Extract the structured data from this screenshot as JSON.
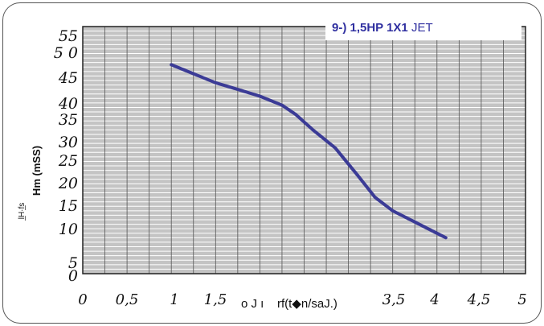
{
  "chart_data": {
    "type": "line",
    "title_bold": "9-) 1,5HP 1X1",
    "title_rest": " JET",
    "ylabel": "Hm (mSS)",
    "ylabel_extra": "l̲H·f̲s",
    "xlabel": "o J ı    rf(t◆n/saJ.)",
    "xlim": [
      0,
      5
    ],
    "ylim": [
      0,
      55
    ],
    "y_tick_labels": [
      "55",
      "5 0",
      "45",
      "40",
      "35",
      "30",
      "25",
      "20",
      "15",
      "10",
      "5",
      "0"
    ],
    "x_tick_labels": [
      "0",
      "0,5",
      "1",
      "1,5",
      "3,5",
      "4",
      "4,5",
      "5"
    ],
    "series": [
      {
        "x": [
          1.0,
          1.25,
          1.5,
          1.75,
          2.0,
          2.25,
          2.4,
          2.6,
          2.85,
          3.1,
          3.3,
          3.5,
          3.75,
          4.0,
          4.1
        ],
        "y": [
          46.5,
          44.5,
          42.5,
          41.0,
          39.5,
          37.5,
          35.5,
          32.0,
          28.0,
          22.0,
          17.0,
          14.0,
          11.5,
          9.0,
          8.0
        ]
      }
    ],
    "grid": true,
    "colors": {
      "line": "#3b3b96",
      "plot_bg": "#c4c4c4",
      "grid": "#ffffff"
    }
  }
}
